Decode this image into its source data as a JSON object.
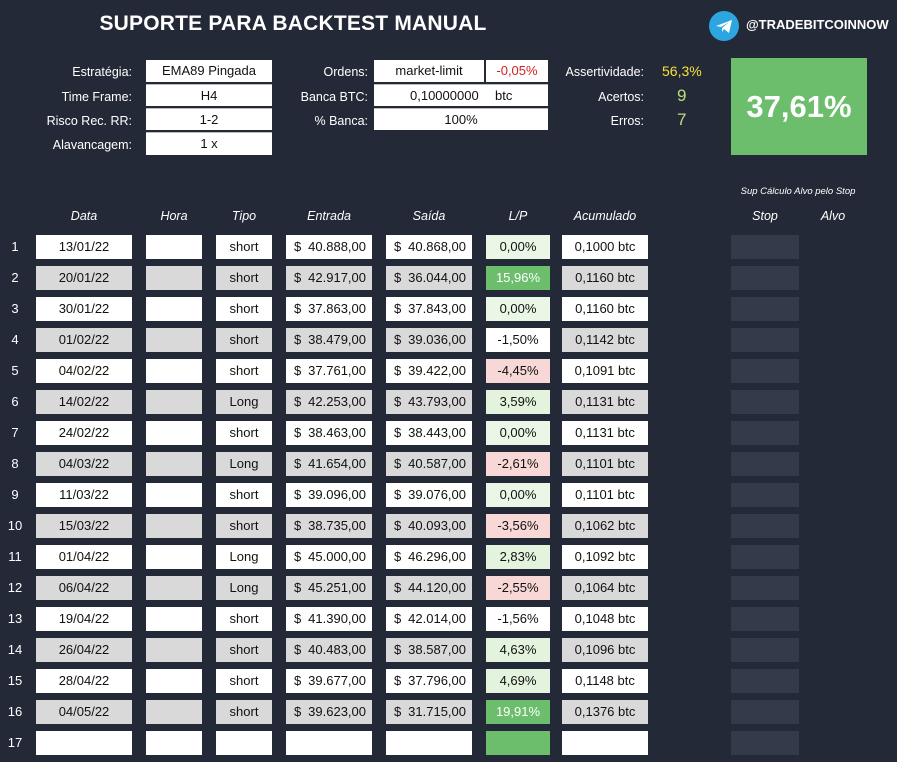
{
  "title": "SUPORTE PARA BACKTEST MANUAL",
  "telegram": {
    "icon": "telegram-icon",
    "handle": "@TRADEBITCOINNOW"
  },
  "settings": {
    "estrategia_label": "Estratégia:",
    "estrategia": "EMA89 Pingada",
    "timeframe_label": "Time Frame:",
    "timeframe": "H4",
    "risco_label": "Risco Rec. RR:",
    "risco": "1-2",
    "alavancagem_label": "Alavancagem:",
    "alavancagem": "1 x",
    "ordens_label": "Ordens:",
    "ordens": "market-limit",
    "ordens_fee": "-0,05%",
    "banca_label": "Banca BTC:",
    "banca": "0,10000000",
    "banca_unit": "btc",
    "pct_banca_label": "% Banca:",
    "pct_banca": "100%"
  },
  "stats": {
    "assertividade_label": "Assertividade:",
    "assertividade": "56,3%",
    "acertos_label": "Acertos:",
    "acertos": "9",
    "erros_label": "Erros:",
    "erros": "7",
    "result": "37,61%"
  },
  "colors": {
    "background": "#232936",
    "positive": "#6cbe6c",
    "negative_light": "#f8d7d7",
    "positive_light": "#e4f3dd",
    "fee_red": "#d42020",
    "assert_yellow": "#f4e23a"
  },
  "table": {
    "sup_note": "Sup Cálculo Alvo pelo Stop",
    "headers": {
      "data": "Data",
      "hora": "Hora",
      "tipo": "Tipo",
      "entrada": "Entrada",
      "saida": "Saída",
      "lp": "L/P",
      "acumulado": "Acumulado",
      "stop": "Stop",
      "alvo": "Alvo"
    },
    "currency": "$",
    "rows": [
      {
        "n": "1",
        "data": "13/01/22",
        "tipo": "short",
        "entrada": "40.888,00",
        "saida": "40.868,00",
        "lp": "0,00%",
        "lp_kind": "flat",
        "acum": "0,1000 btc"
      },
      {
        "n": "2",
        "data": "20/01/22",
        "tipo": "short",
        "entrada": "42.917,00",
        "saida": "36.044,00",
        "lp": "15,96%",
        "lp_kind": "strong",
        "acum": "0,1160 btc"
      },
      {
        "n": "3",
        "data": "30/01/22",
        "tipo": "short",
        "entrada": "37.863,00",
        "saida": "37.843,00",
        "lp": "0,00%",
        "lp_kind": "flat",
        "acum": "0,1160 btc"
      },
      {
        "n": "4",
        "data": "01/02/22",
        "tipo": "short",
        "entrada": "38.479,00",
        "saida": "39.036,00",
        "lp": "-1,50%",
        "lp_kind": "neutral",
        "acum": "0,1142 btc"
      },
      {
        "n": "5",
        "data": "04/02/22",
        "tipo": "short",
        "entrada": "37.761,00",
        "saida": "39.422,00",
        "lp": "-4,45%",
        "lp_kind": "neg",
        "acum": "0,1091 btc"
      },
      {
        "n": "6",
        "data": "14/02/22",
        "tipo": "Long",
        "entrada": "42.253,00",
        "saida": "43.793,00",
        "lp": "3,59%",
        "lp_kind": "pos",
        "acum": "0,1131 btc"
      },
      {
        "n": "7",
        "data": "24/02/22",
        "tipo": "short",
        "entrada": "38.463,00",
        "saida": "38.443,00",
        "lp": "0,00%",
        "lp_kind": "flat",
        "acum": "0,1131 btc"
      },
      {
        "n": "8",
        "data": "04/03/22",
        "tipo": "Long",
        "entrada": "41.654,00",
        "saida": "40.587,00",
        "lp": "-2,61%",
        "lp_kind": "neg",
        "acum": "0,1101 btc"
      },
      {
        "n": "9",
        "data": "11/03/22",
        "tipo": "short",
        "entrada": "39.096,00",
        "saida": "39.076,00",
        "lp": "0,00%",
        "lp_kind": "flat",
        "acum": "0,1101 btc"
      },
      {
        "n": "10",
        "data": "15/03/22",
        "tipo": "short",
        "entrada": "38.735,00",
        "saida": "40.093,00",
        "lp": "-3,56%",
        "lp_kind": "neg",
        "acum": "0,1062 btc"
      },
      {
        "n": "11",
        "data": "01/04/22",
        "tipo": "Long",
        "entrada": "45.000,00",
        "saida": "46.296,00",
        "lp": "2,83%",
        "lp_kind": "pos",
        "acum": "0,1092 btc"
      },
      {
        "n": "12",
        "data": "06/04/22",
        "tipo": "Long",
        "entrada": "45.251,00",
        "saida": "44.120,00",
        "lp": "-2,55%",
        "lp_kind": "neg",
        "acum": "0,1064 btc"
      },
      {
        "n": "13",
        "data": "19/04/22",
        "tipo": "short",
        "entrada": "41.390,00",
        "saida": "42.014,00",
        "lp": "-1,56%",
        "lp_kind": "neutral",
        "acum": "0,1048 btc"
      },
      {
        "n": "14",
        "data": "26/04/22",
        "tipo": "short",
        "entrada": "40.483,00",
        "saida": "38.587,00",
        "lp": "4,63%",
        "lp_kind": "pos",
        "acum": "0,1096 btc"
      },
      {
        "n": "15",
        "data": "28/04/22",
        "tipo": "short",
        "entrada": "39.677,00",
        "saida": "37.796,00",
        "lp": "4,69%",
        "lp_kind": "pos",
        "acum": "0,1148 btc"
      },
      {
        "n": "16",
        "data": "04/05/22",
        "tipo": "short",
        "entrada": "39.623,00",
        "saida": "31.715,00",
        "lp": "19,91%",
        "lp_kind": "strong",
        "acum": "0,1376 btc"
      },
      {
        "n": "17",
        "data": "",
        "tipo": "",
        "entrada": "",
        "saida": "",
        "lp": "",
        "lp_kind": "strong",
        "acum": ""
      }
    ]
  }
}
